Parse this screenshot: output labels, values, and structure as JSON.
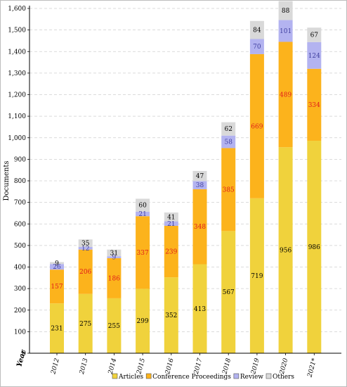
{
  "chart_data": {
    "type": "bar",
    "stacked": true,
    "categories": [
      "2012",
      "2013",
      "2014",
      "2015",
      "2016",
      "2017",
      "2018",
      "2019",
      "2020",
      "2021*"
    ],
    "xlabel": "Year",
    "ylabel": "Documents",
    "ylim": [
      0,
      1600
    ],
    "yticks": [
      0,
      100,
      200,
      300,
      400,
      500,
      600,
      700,
      800,
      900,
      1000,
      1100,
      1200,
      1300,
      1400,
      1500,
      1600
    ],
    "ytick_labels": [
      "0",
      "100",
      "200",
      "300",
      "400",
      "500",
      "600",
      "700",
      "800",
      "900",
      "1,000",
      "1,100",
      "1,200",
      "1,300",
      "1,400",
      "1,500",
      "1,600"
    ],
    "grid": true,
    "legend_position": "bottom",
    "series": [
      {
        "name": "Articles",
        "color": "#f0d23c",
        "label_color": "#000000",
        "values": [
          231,
          275,
          255,
          299,
          352,
          413,
          567,
          719,
          956,
          986
        ]
      },
      {
        "name": "Conference Proceedings",
        "color": "#fcb31c",
        "label_color": "#e01b1b",
        "values": [
          157,
          206,
          186,
          337,
          239,
          348,
          385,
          669,
          489,
          334
        ]
      },
      {
        "name": "Review",
        "color": "#b3b3f0",
        "label_color": "#4040a0",
        "values": [
          26,
          12,
          9,
          21,
          21,
          38,
          58,
          70,
          101,
          124
        ]
      },
      {
        "name": "Others",
        "color": "#d9d9d9",
        "label_color": "#000000",
        "values": [
          9,
          35,
          31,
          60,
          41,
          47,
          62,
          84,
          88,
          67
        ]
      }
    ]
  }
}
